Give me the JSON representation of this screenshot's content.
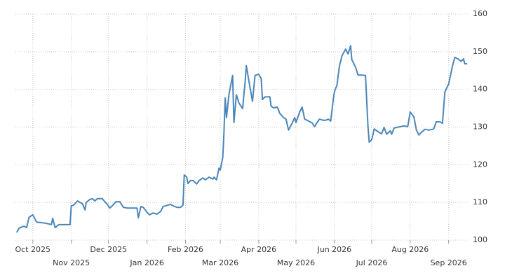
{
  "chart_data": {
    "type": "line",
    "x": [
      -13,
      -11,
      -7,
      -5,
      -3,
      0,
      3,
      8,
      13,
      15,
      16,
      18,
      21,
      24,
      28,
      30,
      31,
      33,
      36,
      38,
      40,
      42,
      43,
      46,
      48,
      50,
      52,
      56,
      58,
      60,
      62,
      64,
      67,
      70,
      73,
      76,
      81,
      84,
      85,
      87,
      89,
      92,
      94,
      97,
      100,
      103,
      105,
      109,
      111,
      113,
      116,
      119,
      121,
      122,
      124,
      125,
      127,
      129,
      132,
      134,
      137,
      139,
      142,
      145,
      146,
      148,
      150,
      151,
      153,
      154,
      155,
      156,
      158,
      161,
      162,
      164,
      166,
      169,
      171,
      172,
      174,
      177,
      179,
      182,
      184,
      185,
      187,
      191,
      192,
      194,
      197,
      199,
      202,
      204,
      206,
      209,
      211,
      212,
      215,
      217,
      219,
      221,
      225,
      227,
      229,
      231,
      234,
      236,
      238,
      240,
      242,
      243,
      245,
      247,
      249,
      252,
      254,
      256,
      257,
      260,
      262,
      265,
      268,
      270,
      271,
      273,
      275,
      278,
      281,
      283,
      285,
      288,
      289,
      291,
      293,
      296,
      299,
      302,
      304,
      307,
      309,
      311,
      313,
      316,
      319,
      322,
      323,
      325,
      328,
      330,
      332,
      335,
      338,
      340,
      343,
      345,
      347,
      348,
      350
    ],
    "series": [
      {
        "color": "#4a86b8",
        "values": [
          102,
          103.2,
          103.7,
          103.3,
          106.1,
          106.7,
          104.8,
          104.6,
          104.3,
          104.1,
          105.8,
          103.3,
          104.1,
          104.1,
          104.1,
          104.1,
          109.1,
          109.3,
          110.4,
          110,
          109.7,
          108,
          110,
          110.8,
          111,
          110.4,
          111,
          111,
          110.2,
          109.5,
          108.5,
          109.1,
          110.2,
          110.2,
          108.7,
          108.5,
          108.5,
          108.5,
          105.9,
          108.9,
          108.7,
          107.4,
          106.7,
          107.2,
          106.9,
          107.6,
          108.9,
          109.3,
          109.5,
          109.1,
          108.7,
          108.7,
          109.3,
          117.3,
          116.7,
          115,
          115.8,
          115.8,
          114.9,
          115.8,
          116.5,
          116,
          116.7,
          116.2,
          116.7,
          116,
          119.1,
          118.6,
          121.9,
          128.4,
          137.7,
          132.5,
          138.6,
          143.7,
          131.2,
          138.6,
          136.4,
          134.9,
          141.8,
          146.3,
          142.4,
          136.8,
          143.7,
          144,
          142.9,
          137.3,
          138,
          138,
          135.5,
          135.1,
          135.3,
          133.6,
          132.5,
          132.1,
          129.2,
          131.1,
          132.5,
          131.2,
          134,
          135.3,
          132.1,
          131.8,
          131.1,
          130.1,
          131.2,
          132.1,
          131.8,
          131.8,
          132.1,
          131.6,
          137.2,
          139.4,
          141.1,
          146.1,
          148.9,
          150.7,
          149.4,
          151.6,
          147.9,
          145.9,
          143.8,
          143.8,
          143.7,
          130.3,
          126,
          126.6,
          129.5,
          128.8,
          128.2,
          129.9,
          128.1,
          129,
          128.1,
          129.7,
          129.9,
          130.1,
          130.3,
          130.1,
          134,
          132.7,
          129.2,
          127.9,
          128.6,
          129.4,
          129.2,
          129.4,
          129.5,
          131.4,
          131.4,
          131,
          139.4,
          141.4,
          146.1,
          148.5,
          148,
          147.4,
          148.1,
          146.8,
          146.8
        ]
      }
    ],
    "xlim": [
      -14,
      351
    ],
    "xticks": [
      {
        "value": 0,
        "label": "Oct 2025"
      },
      {
        "value": 31,
        "label": "Nov 2025"
      },
      {
        "value": 61,
        "label": "Dec 2025"
      },
      {
        "value": 92,
        "label": "Jan 2026"
      },
      {
        "value": 123,
        "label": "Feb 2026"
      },
      {
        "value": 151,
        "label": "Mar 2026"
      },
      {
        "value": 182,
        "label": "Apr 2026"
      },
      {
        "value": 212,
        "label": "May 2026"
      },
      {
        "value": 243,
        "label": "Jun 2026"
      },
      {
        "value": 273,
        "label": "Jul 2026"
      },
      {
        "value": 304,
        "label": "Aug 2026"
      },
      {
        "value": 335,
        "label": "Sep 2026"
      }
    ],
    "ylim": [
      100,
      160
    ],
    "yticks": [
      100,
      110,
      120,
      130,
      140,
      150,
      160
    ],
    "grid": true
  }
}
